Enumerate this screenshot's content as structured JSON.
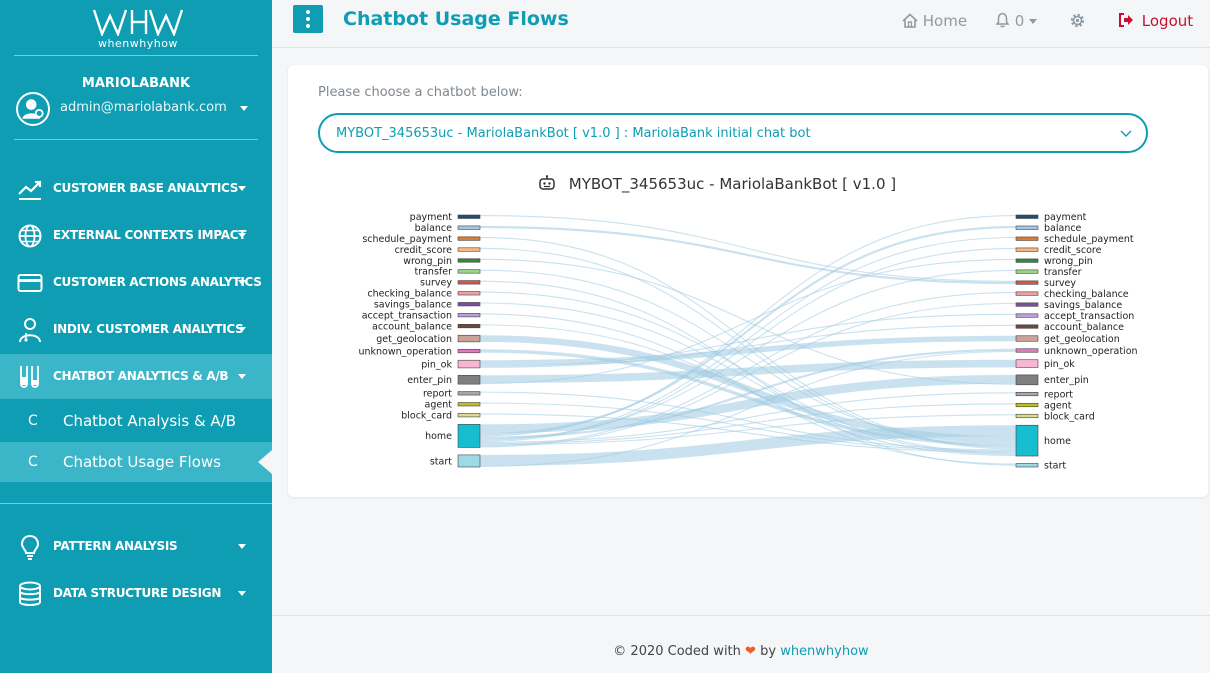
{
  "brand": {
    "logo_text": "whenwhyhow"
  },
  "account": {
    "bank_name": "MARIOLABANK",
    "email": "admin@mariolabank.com"
  },
  "sidebar": {
    "menu": [
      {
        "label": "CUSTOMER BASE ANALYTICS",
        "icon": "trend-chart-icon"
      },
      {
        "label": "EXTERNAL CONTEXTS IMPACT",
        "icon": "globe-icon"
      },
      {
        "label": "CUSTOMER ACTIONS ANALYTICS",
        "icon": "credit-card-icon"
      },
      {
        "label": "INDIV. CUSTOMER ANALYTICS",
        "icon": "user-doctor-icon"
      },
      {
        "label": "CHATBOT ANALYTICS & A/B",
        "icon": "flask-icon"
      }
    ],
    "submenu": [
      {
        "prefix": "C",
        "label": "Chatbot Analysis & A/B"
      },
      {
        "prefix": "C",
        "label": "Chatbot Usage Flows"
      }
    ],
    "menu2": [
      {
        "label": "PATTERN ANALYSIS",
        "icon": "lightbulb-icon"
      },
      {
        "label": "DATA STRUCTURE DESIGN",
        "icon": "database-icon"
      }
    ]
  },
  "header": {
    "title": "Chatbot Usage Flows",
    "home": "Home",
    "notifications": "0",
    "logout": "Logout"
  },
  "main": {
    "choose_label": "Please choose a chatbot below:",
    "selected_bot": "MYBOT_345653uc - MariolaBankBot [ v1.0 ]  : MariolaBank initial chat bot",
    "chart_title": "MYBOT_345653uc - MariolaBankBot [ v1.0 ]"
  },
  "chart_data": {
    "type": "sankey",
    "left_nodes": [
      {
        "name": "payment",
        "color": "#1f4e79"
      },
      {
        "name": "balance",
        "color": "#a9c4e6"
      },
      {
        "name": "schedule_payment",
        "color": "#e07b2a"
      },
      {
        "name": "credit_score",
        "color": "#f3b889"
      },
      {
        "name": "wrong_pin",
        "color": "#2e8b3a"
      },
      {
        "name": "transfer",
        "color": "#9bd38a"
      },
      {
        "name": "survey",
        "color": "#d9534f"
      },
      {
        "name": "checking_balance",
        "color": "#e8a3a3"
      },
      {
        "name": "savings_balance",
        "color": "#7b4fa0"
      },
      {
        "name": "accept_transaction",
        "color": "#b9a2d4"
      },
      {
        "name": "account_balance",
        "color": "#6b4a3a"
      },
      {
        "name": "get_geolocation",
        "color": "#c9a29a"
      },
      {
        "name": "unknown_operation",
        "color": "#e377c2"
      },
      {
        "name": "pin_ok",
        "color": "#f7b6d2"
      },
      {
        "name": "enter_pin",
        "color": "#7f7f7f"
      },
      {
        "name": "report",
        "color": "#a7a7a7"
      },
      {
        "name": "agent",
        "color": "#bcbd22"
      },
      {
        "name": "block_card",
        "color": "#dbdb8d"
      },
      {
        "name": "home",
        "color": "#17becf"
      },
      {
        "name": "start",
        "color": "#9edae5"
      }
    ],
    "right_nodes": [
      {
        "name": "payment",
        "color": "#1f4e79"
      },
      {
        "name": "balance",
        "color": "#a9c4e6"
      },
      {
        "name": "schedule_payment",
        "color": "#e07b2a"
      },
      {
        "name": "credit_score",
        "color": "#f3b889"
      },
      {
        "name": "wrong_pin",
        "color": "#2e8b3a"
      },
      {
        "name": "transfer",
        "color": "#9bd38a"
      },
      {
        "name": "survey",
        "color": "#d9534f"
      },
      {
        "name": "checking_balance",
        "color": "#e8a3a3"
      },
      {
        "name": "savings_balance",
        "color": "#7b4fa0"
      },
      {
        "name": "accept_transaction",
        "color": "#b9a2d4"
      },
      {
        "name": "account_balance",
        "color": "#6b4a3a"
      },
      {
        "name": "get_geolocation",
        "color": "#c9a29a"
      },
      {
        "name": "unknown_operation",
        "color": "#e377c2"
      },
      {
        "name": "pin_ok",
        "color": "#f7b6d2"
      },
      {
        "name": "enter_pin",
        "color": "#7f7f7f"
      },
      {
        "name": "report",
        "color": "#a7a7a7"
      },
      {
        "name": "agent",
        "color": "#bcbd22"
      },
      {
        "name": "block_card",
        "color": "#dbdb8d"
      },
      {
        "name": "home",
        "color": "#17becf"
      },
      {
        "name": "start",
        "color": "#9edae5"
      }
    ],
    "links": [
      {
        "source": "start",
        "target": "home",
        "value": 10
      },
      {
        "source": "home",
        "target": "enter_pin",
        "value": 8
      },
      {
        "source": "enter_pin",
        "target": "pin_ok",
        "value": 7
      },
      {
        "source": "pin_ok",
        "target": "get_geolocation",
        "value": 5
      },
      {
        "source": "get_geolocation",
        "target": "home",
        "value": 6
      },
      {
        "source": "unknown_operation",
        "target": "home",
        "value": 3
      },
      {
        "source": "home",
        "target": "balance",
        "value": 2
      },
      {
        "source": "home",
        "target": "payment",
        "value": 1
      },
      {
        "source": "home",
        "target": "unknown_operation",
        "value": 2
      },
      {
        "source": "payment",
        "target": "survey",
        "value": 1
      },
      {
        "source": "balance",
        "target": "survey",
        "value": 2
      },
      {
        "source": "transfer",
        "target": "home",
        "value": 1
      },
      {
        "source": "schedule_payment",
        "target": "home",
        "value": 1
      },
      {
        "source": "credit_score",
        "target": "home",
        "value": 1
      },
      {
        "source": "wrong_pin",
        "target": "enter_pin",
        "value": 1
      },
      {
        "source": "enter_pin",
        "target": "wrong_pin",
        "value": 1
      },
      {
        "source": "home",
        "target": "transfer",
        "value": 1
      },
      {
        "source": "home",
        "target": "schedule_payment",
        "value": 1
      },
      {
        "source": "home",
        "target": "credit_score",
        "value": 1
      },
      {
        "source": "start",
        "target": "unknown_operation",
        "value": 1
      },
      {
        "source": "report",
        "target": "home",
        "value": 1
      },
      {
        "source": "agent",
        "target": "home",
        "value": 1
      },
      {
        "source": "block_card",
        "target": "home",
        "value": 1
      },
      {
        "source": "checking_balance",
        "target": "home",
        "value": 1
      },
      {
        "source": "savings_balance",
        "target": "home",
        "value": 1
      },
      {
        "source": "accept_transaction",
        "target": "start",
        "value": 1
      },
      {
        "source": "account_balance",
        "target": "home",
        "value": 1
      },
      {
        "source": "survey",
        "target": "start",
        "value": 1
      },
      {
        "source": "home",
        "target": "report",
        "value": 1
      },
      {
        "source": "home",
        "target": "agent",
        "value": 1
      },
      {
        "source": "home",
        "target": "block_card",
        "value": 1
      },
      {
        "source": "home",
        "target": "checking_balance",
        "value": 1
      },
      {
        "source": "home",
        "target": "savings_balance",
        "value": 1
      },
      {
        "source": "pin_ok",
        "target": "accept_transaction",
        "value": 1
      },
      {
        "source": "pin_ok",
        "target": "account_balance",
        "value": 1
      }
    ],
    "link_color": "#9ecae1"
  },
  "footer": {
    "prefix": "© 2020 Coded with",
    "heart": "❤",
    "by": "by",
    "link": "whenwhyhow"
  }
}
